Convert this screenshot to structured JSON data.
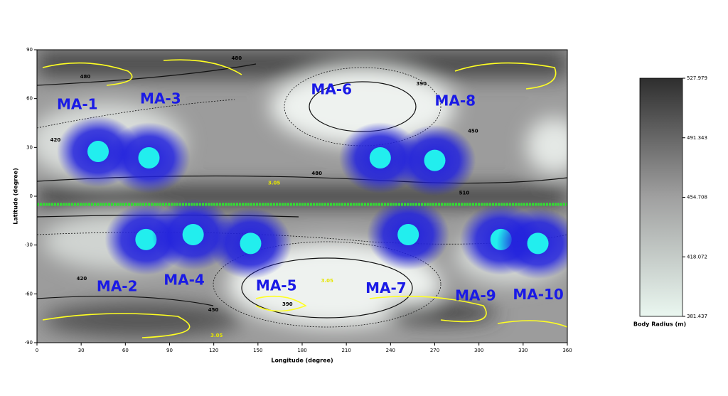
{
  "chart_data": {
    "type": "contour-scatter",
    "xlabel": "Longitude (degree)",
    "ylabel": "Latitude (degree)",
    "xlim": [
      0,
      360
    ],
    "ylim": [
      -90,
      90
    ],
    "xticks": [
      0,
      30,
      60,
      90,
      120,
      150,
      180,
      210,
      240,
      270,
      300,
      330,
      360
    ],
    "yticks": [
      -90,
      -60,
      -30,
      0,
      30,
      60,
      90
    ],
    "clusters": {
      "x": [
        41.5,
        76,
        233,
        270,
        74,
        106,
        145,
        252,
        315,
        340
      ],
      "y": [
        27.5,
        23.6,
        23.6,
        22,
        -26.6,
        -23.6,
        -29,
        -23.6,
        -26.6,
        -29
      ],
      "color": "#2222dd",
      "core_color": "#22eeee"
    },
    "reference_line": {
      "y": -5,
      "color": "#33dd33"
    },
    "annotations": [
      {
        "text": "MA-1",
        "x": 13.5,
        "y": 56
      },
      {
        "text": "MA-3",
        "x": 70,
        "y": 59.4
      },
      {
        "text": "MA-6",
        "x": 186,
        "y": 65
      },
      {
        "text": "MA-8",
        "x": 270,
        "y": 58
      },
      {
        "text": "MA-2",
        "x": 40.5,
        "y": -56
      },
      {
        "text": "MA-4",
        "x": 86,
        "y": -52
      },
      {
        "text": "MA-5",
        "x": 148.6,
        "y": -55.5
      },
      {
        "text": "MA-7",
        "x": 223,
        "y": -57
      },
      {
        "text": "MA-9",
        "x": 283.8,
        "y": -61.6
      },
      {
        "text": "MA-10",
        "x": 323,
        "y": -61
      }
    ],
    "contour_labels": [
      {
        "value": 480,
        "x": 32.8,
        "y": 73.4,
        "color": "#000000"
      },
      {
        "value": 480,
        "x": 135.5,
        "y": 84.8,
        "color": "#000000"
      },
      {
        "value": 420,
        "x": 12.5,
        "y": 34.5,
        "color": "#000000"
      },
      {
        "value": 390,
        "x": 261,
        "y": 69,
        "color": "#000000"
      },
      {
        "value": 450,
        "x": 296,
        "y": 40,
        "color": "#000000"
      },
      {
        "value": 480,
        "x": 190,
        "y": 14,
        "color": "#000000"
      },
      {
        "value": 510,
        "x": 290,
        "y": 2,
        "color": "#000000"
      },
      {
        "value": 420,
        "x": 30.4,
        "y": -50.6,
        "color": "#000000"
      },
      {
        "value": 450,
        "x": 119.7,
        "y": -70,
        "color": "#000000"
      },
      {
        "value": 390,
        "x": 170,
        "y": -66.4,
        "color": "#000000"
      },
      {
        "value": 3.05,
        "x": 161,
        "y": 8,
        "color": "#e6e600"
      },
      {
        "value": 3.05,
        "x": 197,
        "y": -52,
        "color": "#e6e600"
      },
      {
        "value": 3.05,
        "x": 122,
        "y": -85.6,
        "color": "#e6e600"
      }
    ],
    "colorbar": {
      "label": "Body Radius (m)",
      "lim": [
        381.437,
        527.979
      ],
      "ticks": [
        527.979,
        491.343,
        454.708,
        418.072,
        381.437
      ]
    }
  }
}
